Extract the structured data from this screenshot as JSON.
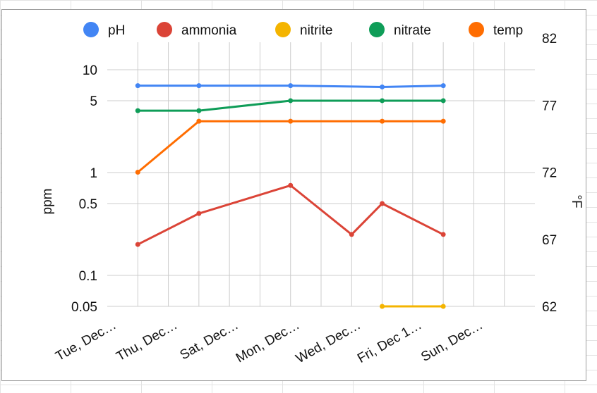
{
  "chart_data": {
    "type": "line",
    "title": "",
    "categories": [
      "Tue, Dec…",
      "Thu, Dec…",
      "Sat, Dec…",
      "Mon, Dec…",
      "Wed, Dec…",
      "Fri, Dec 1…",
      "Sun, Dec…"
    ],
    "x": [
      1,
      3,
      6,
      8,
      9,
      11
    ],
    "y_left": {
      "label": "ppm",
      "scale": "log",
      "ylim": [
        0.05,
        10
      ],
      "ticks": [
        {
          "value": 0.05,
          "label": "0.05"
        },
        {
          "value": 0.1,
          "label": "0.1"
        },
        {
          "value": 0.5,
          "label": "0.5"
        },
        {
          "value": 1,
          "label": "1"
        },
        {
          "value": 5,
          "label": "5"
        },
        {
          "value": 10,
          "label": "10"
        }
      ]
    },
    "y_right": {
      "label": "°F",
      "scale": "linear",
      "ylim": [
        62,
        82
      ],
      "ticks": [
        {
          "value": 62,
          "label": "62"
        },
        {
          "value": 67,
          "label": "67"
        },
        {
          "value": 72,
          "label": "72"
        },
        {
          "value": 77,
          "label": "77"
        },
        {
          "value": 82,
          "label": "82"
        }
      ]
    },
    "grid": true,
    "legend": "top",
    "series": [
      {
        "name": "pH",
        "color": "#4285f4",
        "axis": "left",
        "points": [
          [
            1,
            7
          ],
          [
            3,
            7
          ],
          [
            6,
            7
          ],
          [
            9,
            6.8
          ],
          [
            11,
            7
          ]
        ]
      },
      {
        "name": "ammonia",
        "color": "#db4437",
        "axis": "left",
        "points": [
          [
            1,
            0.2
          ],
          [
            3,
            0.4
          ],
          [
            6,
            0.75
          ],
          [
            8,
            0.25
          ],
          [
            9,
            0.5
          ],
          [
            11,
            0.25
          ]
        ]
      },
      {
        "name": "nitrite",
        "color": "#f4b400",
        "axis": "left",
        "points": [
          [
            9,
            0.05
          ],
          [
            11,
            0.05
          ]
        ]
      },
      {
        "name": "nitrate",
        "color": "#0f9d58",
        "axis": "left",
        "points": [
          [
            1,
            4
          ],
          [
            3,
            4
          ],
          [
            6,
            5
          ],
          [
            9,
            5
          ],
          [
            11,
            5
          ]
        ]
      },
      {
        "name": "temp",
        "color": "#ff6d01",
        "axis": "right",
        "points": [
          [
            1,
            72
          ],
          [
            3,
            75.8
          ],
          [
            6,
            75.8
          ],
          [
            9,
            75.8
          ],
          [
            11,
            75.8
          ]
        ]
      }
    ]
  }
}
